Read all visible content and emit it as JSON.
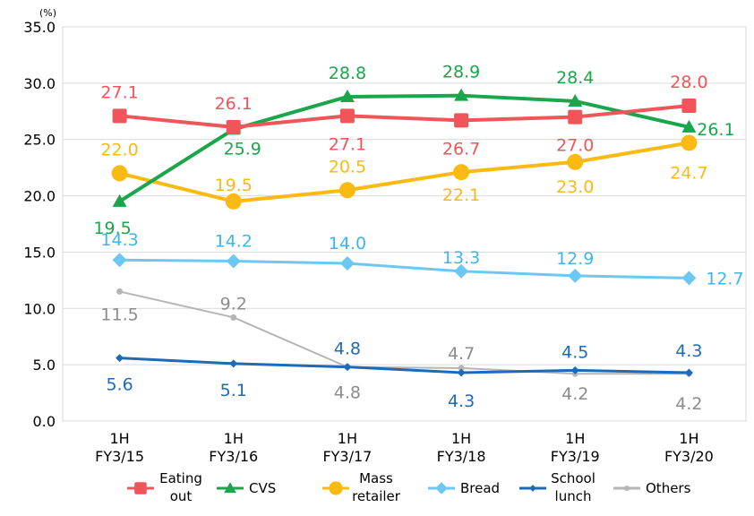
{
  "chart_data": {
    "type": "line",
    "unit_label": "(%)",
    "categories": [
      [
        "1H",
        "FY3/15"
      ],
      [
        "1H",
        "FY3/16"
      ],
      [
        "1H",
        "FY3/17"
      ],
      [
        "1H",
        "FY3/18"
      ],
      [
        "1H",
        "FY3/19"
      ],
      [
        "1H",
        "FY3/20"
      ]
    ],
    "ylim": [
      0,
      35
    ],
    "yticks": [
      "0.0",
      "5.0",
      "10.0",
      "15.0",
      "20.0",
      "25.0",
      "30.0",
      "35.0"
    ],
    "grid": true,
    "legend_position": "bottom",
    "series": [
      {
        "key": "eating-out",
        "name": [
          "Eating",
          "out"
        ],
        "color": "#f0555a",
        "marker": "square",
        "values": [
          27.1,
          26.1,
          27.1,
          26.7,
          27.0,
          28.0
        ],
        "labels": [
          "27.1",
          "26.1",
          "27.1",
          "26.7",
          "27.0",
          "28.0"
        ]
      },
      {
        "key": "cvs",
        "name": [
          "CVS"
        ],
        "color": "#1aa64a",
        "marker": "triangle",
        "values": [
          19.5,
          25.9,
          28.8,
          28.9,
          28.4,
          26.1
        ],
        "labels": [
          "19.5",
          "25.9",
          "28.8",
          "28.9",
          "28.4",
          "26.1"
        ]
      },
      {
        "key": "mass-retailer",
        "name": [
          "Mass",
          "retailer"
        ],
        "color": "#fbb914",
        "marker": "circle",
        "values": [
          22.0,
          19.5,
          20.5,
          22.1,
          23.0,
          24.7
        ],
        "labels": [
          "22.0",
          "19.5",
          "20.5",
          "22.1",
          "23.0",
          "24.7"
        ]
      },
      {
        "key": "bread",
        "name": [
          "Bread"
        ],
        "color": "#6cc8f2",
        "marker": "diamond",
        "values": [
          14.3,
          14.2,
          14.0,
          13.3,
          12.9,
          12.7
        ],
        "labels": [
          "14.3",
          "14.2",
          "14.0",
          "13.3",
          "12.9",
          "12.7"
        ]
      },
      {
        "key": "school-lunch",
        "name": [
          "School",
          "lunch"
        ],
        "color": "#1d6bb8",
        "marker": "smalldiamond",
        "values": [
          5.6,
          5.1,
          4.8,
          4.3,
          4.5,
          4.3
        ],
        "labels": [
          "5.6",
          "5.1",
          "4.8",
          "4.3",
          "4.5",
          "4.3"
        ]
      },
      {
        "key": "others",
        "name": [
          "Others"
        ],
        "color": "#b5b5b5",
        "marker": "dot",
        "values": [
          11.5,
          9.2,
          4.8,
          4.7,
          4.2,
          4.2
        ],
        "labels": [
          "11.5",
          "9.2",
          "4.8",
          "4.7",
          "4.2",
          "4.2"
        ]
      }
    ]
  }
}
